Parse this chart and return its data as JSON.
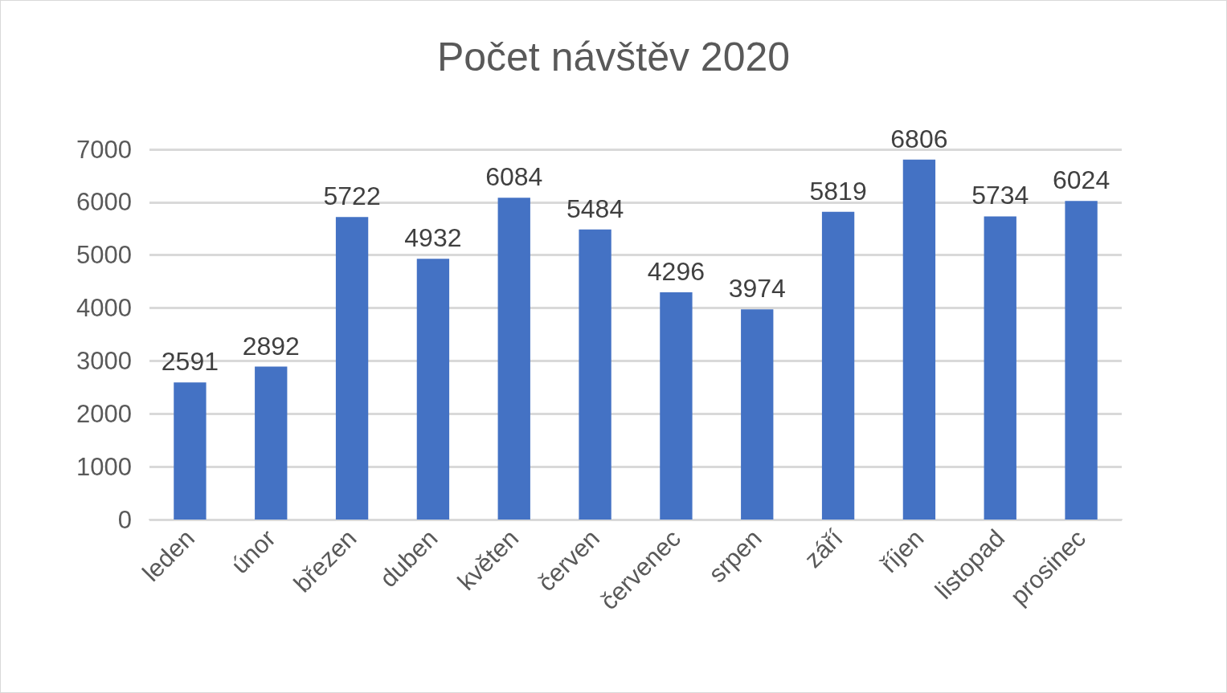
{
  "chart_data": {
    "type": "bar",
    "title": "Počet návštěv 2020",
    "categories": [
      "leden",
      "únor",
      "březen",
      "duben",
      "květen",
      "červen",
      "červenec",
      "srpen",
      "září",
      "říjen",
      "listopad",
      "prosinec"
    ],
    "values": [
      2591,
      2892,
      5722,
      4932,
      6084,
      5484,
      4296,
      3974,
      5819,
      6806,
      5734,
      6024
    ],
    "color": "#4472c4",
    "ylim": [
      0,
      7000
    ],
    "yticks": [
      0,
      1000,
      2000,
      3000,
      4000,
      5000,
      6000,
      7000
    ],
    "grid": "y",
    "data_labels": true
  }
}
